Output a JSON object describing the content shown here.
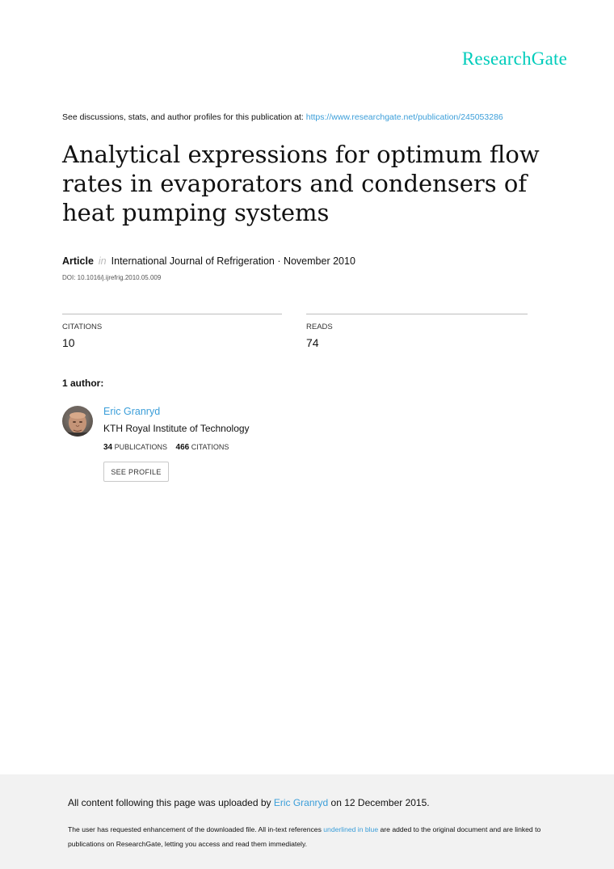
{
  "brand": {
    "logo": "ResearchGate",
    "color": "#00ccbb"
  },
  "discussion": {
    "prefix": "See discussions, stats, and author profiles for this publication at: ",
    "url": "https://www.researchgate.net/publication/245053286"
  },
  "article": {
    "title": "Analytical expressions for optimum flow rates in evaporators and condensers of heat pumping systems",
    "type": "Article",
    "in_word": "in",
    "journal_date": "International Journal of Refrigeration · November 2010",
    "doi": "DOI: 10.1016/j.ijrefrig.2010.05.009"
  },
  "stats": {
    "citations_label": "CITATIONS",
    "citations_value": "10",
    "reads_label": "READS",
    "reads_value": "74"
  },
  "authors": {
    "heading": "1 author:",
    "list": [
      {
        "name": "Eric Granryd",
        "institution": "KTH Royal Institute of Technology",
        "publications_count": "34",
        "publications_label": "PUBLICATIONS",
        "citations_count": "466",
        "citations_label": "CITATIONS",
        "profile_button": "SEE PROFILE"
      }
    ]
  },
  "footer": {
    "upload_prefix": "All content following this page was uploaded by ",
    "upload_author": "Eric Granryd",
    "upload_suffix": " on 12 December 2015.",
    "notice_prefix": "The user has requested enhancement of the downloaded file. All in-text references ",
    "notice_link": "underlined in blue",
    "notice_suffix": " are added to the original document and are linked to publications on ResearchGate, letting you access and read them immediately."
  },
  "colors": {
    "link": "#3b9ed9",
    "footer_bg": "#f2f2f2"
  }
}
